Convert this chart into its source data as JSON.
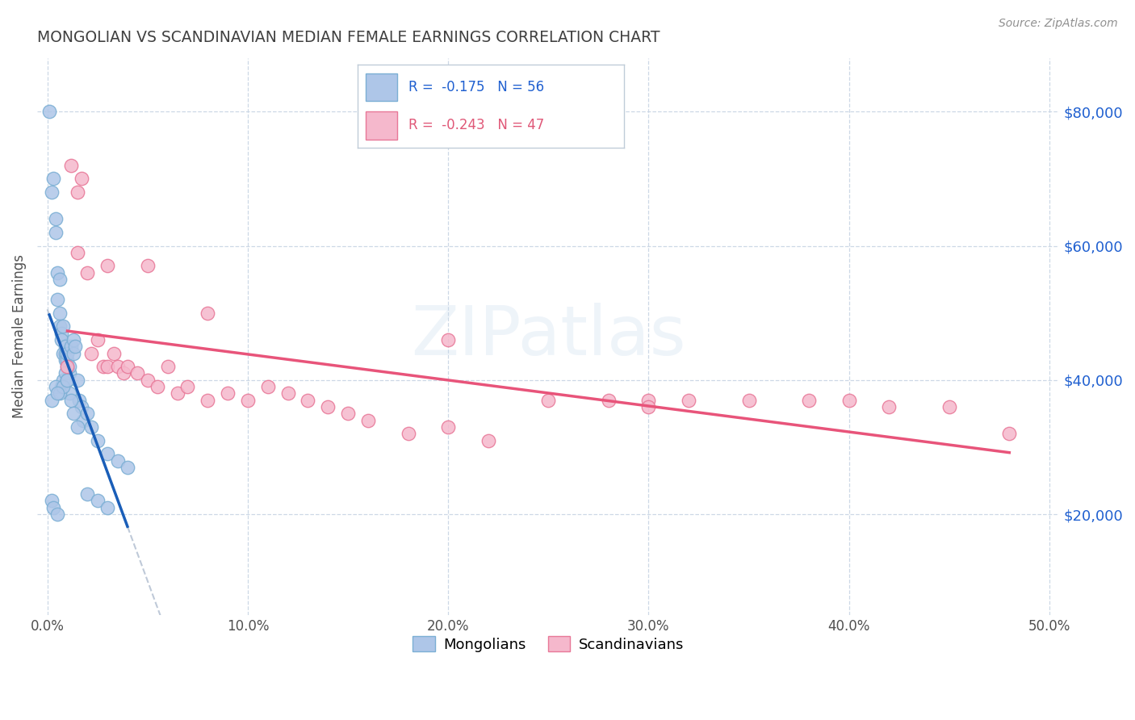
{
  "title": "MONGOLIAN VS SCANDINAVIAN MEDIAN FEMALE EARNINGS CORRELATION CHART",
  "source": "Source: ZipAtlas.com",
  "ylabel": "Median Female Earnings",
  "ytick_labels": [
    "$20,000",
    "$40,000",
    "$60,000",
    "$80,000"
  ],
  "ytick_vals": [
    20000,
    40000,
    60000,
    80000
  ],
  "xtick_labels": [
    "0.0%",
    "10.0%",
    "20.0%",
    "30.0%",
    "40.0%",
    "50.0%"
  ],
  "xtick_vals": [
    0.0,
    0.1,
    0.2,
    0.3,
    0.4,
    0.5
  ],
  "mongolian_color": "#aec6e8",
  "mongolian_edge": "#7bafd4",
  "scandinavian_color": "#f5b8cc",
  "scandinavian_edge": "#e87898",
  "mongolian_line_color": "#1a5eb8",
  "scandinavian_line_color": "#e8547a",
  "dashed_line_color": "#b8c4d4",
  "legend_blue_color": "#2060d0",
  "legend_pink_color": "#e05878",
  "background_color": "#ffffff",
  "grid_color": "#c8d4e4",
  "title_color": "#404040",
  "source_color": "#909090",
  "xlim": [
    -0.005,
    0.505
  ],
  "ylim": [
    5000,
    88000
  ],
  "figsize": [
    14.06,
    8.92
  ],
  "dpi": 100,
  "mongol_x": [
    0.001,
    0.002,
    0.003,
    0.004,
    0.004,
    0.005,
    0.005,
    0.006,
    0.006,
    0.006,
    0.007,
    0.007,
    0.008,
    0.008,
    0.009,
    0.009,
    0.009,
    0.01,
    0.01,
    0.01,
    0.011,
    0.011,
    0.012,
    0.013,
    0.013,
    0.014,
    0.015,
    0.016,
    0.017,
    0.018,
    0.02,
    0.022,
    0.025,
    0.03,
    0.035,
    0.04,
    0.002,
    0.003,
    0.005,
    0.007,
    0.008,
    0.009,
    0.01,
    0.011,
    0.012,
    0.013,
    0.015,
    0.02,
    0.025,
    0.03,
    0.002,
    0.004,
    0.006,
    0.008,
    0.01,
    0.005
  ],
  "mongol_y": [
    80000,
    68000,
    70000,
    64000,
    62000,
    56000,
    52000,
    55000,
    50000,
    48000,
    47000,
    46000,
    48000,
    44000,
    44000,
    43000,
    45000,
    42000,
    43000,
    44000,
    41000,
    42000,
    45000,
    46000,
    44000,
    45000,
    40000,
    37000,
    36000,
    34000,
    35000,
    33000,
    31000,
    29000,
    28000,
    27000,
    22000,
    21000,
    20000,
    39000,
    40000,
    41000,
    40000,
    38000,
    37000,
    35000,
    33000,
    23000,
    22000,
    21000,
    37000,
    39000,
    38000,
    39000,
    40000,
    38000
  ],
  "scand_x": [
    0.01,
    0.012,
    0.015,
    0.017,
    0.02,
    0.022,
    0.025,
    0.028,
    0.03,
    0.033,
    0.035,
    0.038,
    0.04,
    0.045,
    0.05,
    0.055,
    0.06,
    0.065,
    0.07,
    0.08,
    0.09,
    0.1,
    0.11,
    0.12,
    0.13,
    0.14,
    0.15,
    0.16,
    0.18,
    0.2,
    0.22,
    0.25,
    0.28,
    0.3,
    0.32,
    0.35,
    0.38,
    0.4,
    0.42,
    0.45,
    0.48,
    0.015,
    0.03,
    0.05,
    0.08,
    0.2,
    0.3
  ],
  "scand_y": [
    42000,
    72000,
    68000,
    70000,
    56000,
    44000,
    46000,
    42000,
    42000,
    44000,
    42000,
    41000,
    42000,
    41000,
    40000,
    39000,
    42000,
    38000,
    39000,
    37000,
    38000,
    37000,
    39000,
    38000,
    37000,
    36000,
    35000,
    34000,
    32000,
    33000,
    31000,
    37000,
    37000,
    37000,
    37000,
    37000,
    37000,
    37000,
    36000,
    36000,
    32000,
    59000,
    57000,
    57000,
    50000,
    46000,
    36000
  ]
}
